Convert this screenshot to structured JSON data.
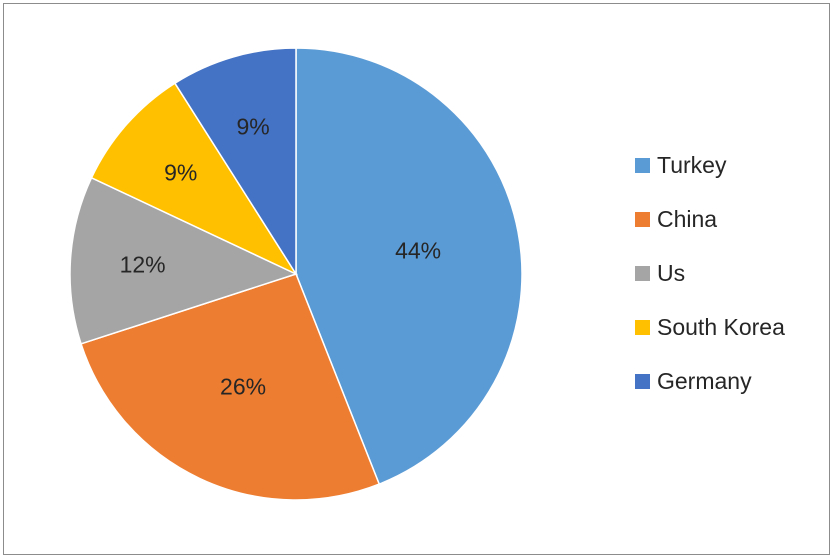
{
  "chart_data": {
    "type": "pie",
    "title": "",
    "categories": [
      "Turkey",
      "China",
      "Us",
      "South Korea",
      "Germany"
    ],
    "values": [
      44,
      26,
      12,
      9,
      9
    ],
    "data_labels": [
      "44%",
      "26%",
      "12%",
      "9%",
      "9%"
    ],
    "colors": [
      "#5b9bd5",
      "#ed7d31",
      "#a5a5a5",
      "#ffc000",
      "#4472c4"
    ],
    "start_angle": "12 o'clock",
    "direction": "clockwise",
    "legend": "right"
  }
}
